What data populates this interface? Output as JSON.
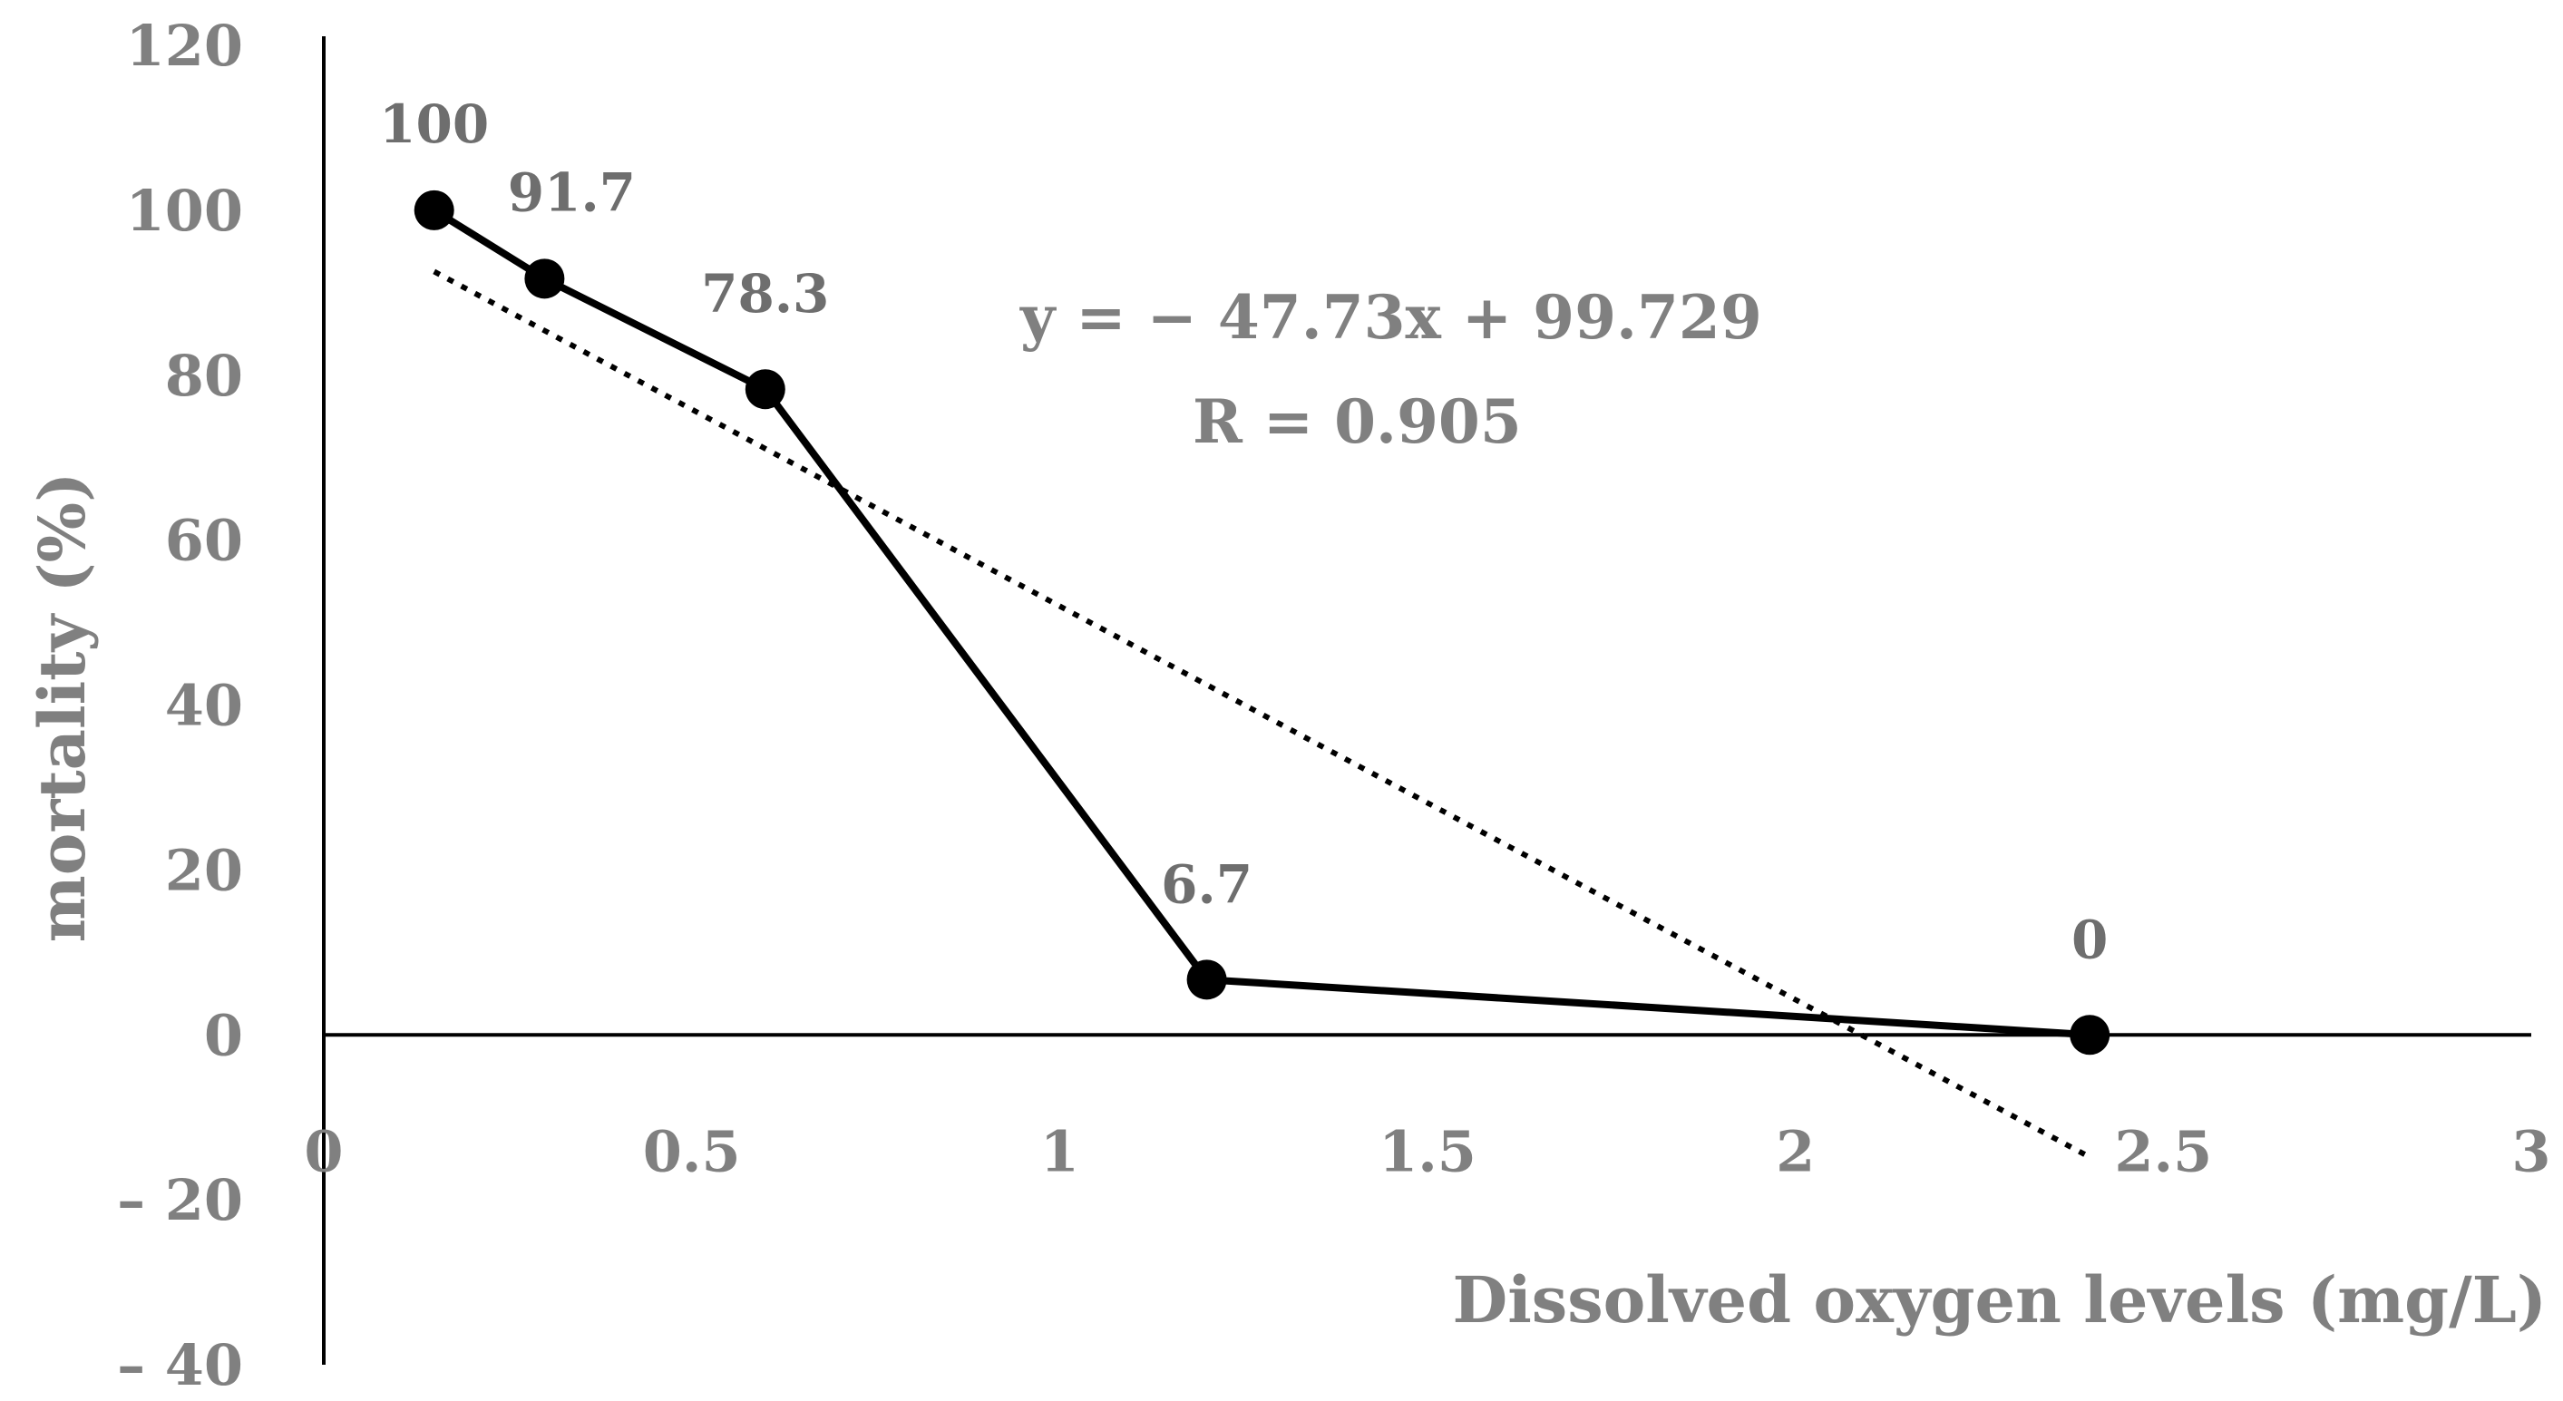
{
  "chart_data": {
    "type": "line",
    "title": "",
    "xlabel": "Dissolved oxygen levels (mg/L)",
    "ylabel": "mortality (%)",
    "xlim": [
      0,
      3
    ],
    "ylim": [
      -40,
      120
    ],
    "x_ticks": [
      {
        "value": 0,
        "label": "0"
      },
      {
        "value": 0.5,
        "label": "0.5"
      },
      {
        "value": 1,
        "label": "1"
      },
      {
        "value": 1.5,
        "label": "1.5"
      },
      {
        "value": 2,
        "label": "2"
      },
      {
        "value": 2.5,
        "label": "2.5"
      },
      {
        "value": 3,
        "label": "3"
      }
    ],
    "y_ticks": [
      {
        "value": 120,
        "label": "120"
      },
      {
        "value": 100,
        "label": "100"
      },
      {
        "value": 80,
        "label": "80"
      },
      {
        "value": 60,
        "label": "60"
      },
      {
        "value": 40,
        "label": "40"
      },
      {
        "value": 20,
        "label": "20"
      },
      {
        "value": 0,
        "label": "0"
      },
      {
        "value": -20,
        "label": "– 20"
      },
      {
        "value": -40,
        "label": "– 40"
      }
    ],
    "grid": false,
    "series": [
      {
        "x": [
          0.15,
          0.3,
          0.6,
          1.2,
          2.4
        ],
        "y": [
          100,
          91.7,
          78.3,
          6.7,
          0
        ],
        "data_labels": [
          "100",
          "91.7",
          "78.3",
          "6.7",
          "0"
        ],
        "color": "#000000",
        "marker": "circle"
      }
    ],
    "trendline": {
      "slope": -47.73,
      "intercept": 99.729,
      "x_range": [
        0.15,
        2.4
      ],
      "style": "dotted",
      "color": "#000000",
      "equation_label": "y = − 47.73x + 99.729",
      "r_label": "R = 0.905"
    }
  }
}
